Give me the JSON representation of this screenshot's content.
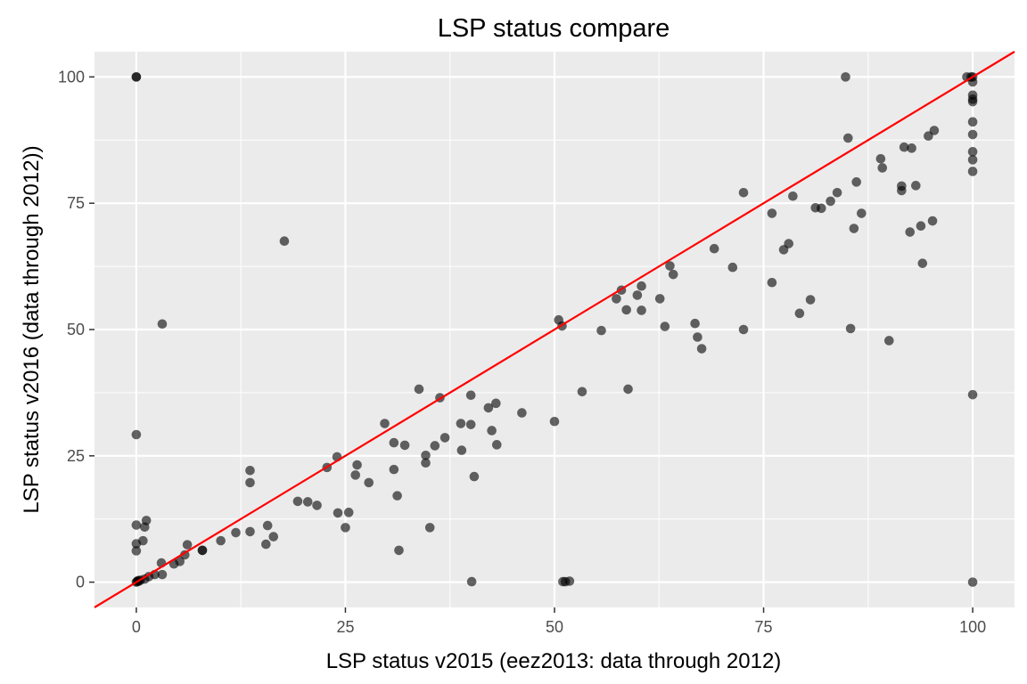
{
  "chart_data": {
    "type": "scatter",
    "title": "LSP status compare",
    "xlabel": "LSP status v2015 (eez2013: data through 2012)",
    "ylabel": "LSP status v2016 (data through 2012))",
    "xlim": [
      -5,
      105
    ],
    "ylim": [
      -5,
      105
    ],
    "x_ticks": [
      0,
      25,
      50,
      75,
      100
    ],
    "y_ticks": [
      0,
      25,
      50,
      75,
      100
    ],
    "grid": true,
    "legend": "none",
    "colors": {
      "panel_background": "#ebebeb",
      "grid": "#ffffff",
      "points": "#000000",
      "reference_line": "#ff0000"
    },
    "point_opacity": 0.6,
    "reference_line": {
      "type": "identity",
      "slope": 1,
      "intercept": 0
    },
    "points": [
      [
        0,
        100
      ],
      [
        0,
        100
      ],
      [
        0,
        29.2
      ],
      [
        0,
        11.3
      ],
      [
        0,
        7.6
      ],
      [
        0,
        6.2
      ],
      [
        0.3,
        0.2
      ],
      [
        0.1,
        0.1
      ],
      [
        0,
        0
      ],
      [
        0.2,
        0.3
      ],
      [
        0.5,
        0.4
      ],
      [
        0.8,
        8.2
      ],
      [
        1,
        10.9
      ],
      [
        1.2,
        12.2
      ],
      [
        1,
        0.6
      ],
      [
        1.5,
        1.1
      ],
      [
        2.2,
        1.5
      ],
      [
        3.1,
        51.1
      ],
      [
        3,
        3.8
      ],
      [
        3.1,
        1.5
      ],
      [
        4.5,
        3.6
      ],
      [
        5.2,
        4.1
      ],
      [
        5.8,
        5.4
      ],
      [
        6.1,
        7.4
      ],
      [
        7.9,
        6.3
      ],
      [
        7.9,
        6.3
      ],
      [
        10.1,
        8.2
      ],
      [
        11.9,
        9.8
      ],
      [
        13.6,
        22.1
      ],
      [
        13.6,
        19.7
      ],
      [
        13.6,
        10
      ],
      [
        15.5,
        7.5
      ],
      [
        15.7,
        11.2
      ],
      [
        16.4,
        9
      ],
      [
        17.7,
        67.5
      ],
      [
        19.3,
        16
      ],
      [
        20.5,
        15.9
      ],
      [
        21.6,
        15.2
      ],
      [
        22.8,
        22.7
      ],
      [
        24,
        24.8
      ],
      [
        24.1,
        13.7
      ],
      [
        25,
        10.8
      ],
      [
        25.4,
        13.8
      ],
      [
        26.2,
        21.2
      ],
      [
        26.4,
        23.2
      ],
      [
        27.8,
        19.7
      ],
      [
        29.7,
        31.4
      ],
      [
        30.8,
        22.3
      ],
      [
        30.8,
        27.6
      ],
      [
        31.2,
        17.1
      ],
      [
        31.4,
        6.3
      ],
      [
        32.1,
        27.1
      ],
      [
        33.8,
        38.2
      ],
      [
        34.6,
        23.6
      ],
      [
        34.6,
        25.1
      ],
      [
        35.1,
        10.8
      ],
      [
        35.7,
        27
      ],
      [
        36.3,
        36.5
      ],
      [
        36.9,
        28.6
      ],
      [
        38.8,
        31.4
      ],
      [
        38.9,
        26.1
      ],
      [
        40,
        31.2
      ],
      [
        40,
        37
      ],
      [
        40.1,
        0.1
      ],
      [
        40.4,
        20.9
      ],
      [
        42.1,
        34.5
      ],
      [
        42.5,
        30
      ],
      [
        43,
        35.4
      ],
      [
        43.1,
        27.2
      ],
      [
        46.1,
        33.5
      ],
      [
        50,
        31.8
      ],
      [
        50.5,
        51.9
      ],
      [
        50.9,
        50.7
      ],
      [
        51,
        0.1
      ],
      [
        51.3,
        0.1
      ],
      [
        51.8,
        0.2
      ],
      [
        53.3,
        37.7
      ],
      [
        55.6,
        49.8
      ],
      [
        57.4,
        56.1
      ],
      [
        58,
        57.8
      ],
      [
        58.6,
        53.9
      ],
      [
        58.8,
        38.2
      ],
      [
        59.9,
        56.8
      ],
      [
        60.4,
        58.6
      ],
      [
        60.4,
        53.8
      ],
      [
        62.6,
        56.1
      ],
      [
        63.2,
        50.6
      ],
      [
        63.8,
        62.6
      ],
      [
        64.2,
        60.9
      ],
      [
        66.8,
        51.2
      ],
      [
        67.1,
        48.5
      ],
      [
        67.6,
        46.2
      ],
      [
        69.1,
        66
      ],
      [
        71.3,
        62.3
      ],
      [
        72.6,
        77.1
      ],
      [
        72.6,
        50
      ],
      [
        76,
        59.3
      ],
      [
        76,
        73
      ],
      [
        77.4,
        65.8
      ],
      [
        78,
        67
      ],
      [
        78.5,
        76.4
      ],
      [
        79.3,
        53.2
      ],
      [
        80.6,
        55.9
      ],
      [
        81.2,
        74.1
      ],
      [
        81.9,
        74
      ],
      [
        83,
        75.4
      ],
      [
        83.8,
        77.1
      ],
      [
        84.8,
        100
      ],
      [
        85.1,
        87.9
      ],
      [
        85.4,
        50.2
      ],
      [
        85.8,
        70
      ],
      [
        86.1,
        79.2
      ],
      [
        86.7,
        73
      ],
      [
        89,
        83.8
      ],
      [
        89.2,
        82
      ],
      [
        90,
        47.8
      ],
      [
        91.5,
        77.5
      ],
      [
        91.5,
        78.4
      ],
      [
        91.8,
        86.1
      ],
      [
        92.5,
        69.3
      ],
      [
        92.7,
        85.9
      ],
      [
        93.2,
        78.5
      ],
      [
        93.8,
        70.5
      ],
      [
        94,
        63.1
      ],
      [
        94.7,
        88.3
      ],
      [
        95.2,
        71.5
      ],
      [
        95.4,
        89.4
      ],
      [
        99.3,
        100
      ],
      [
        99.8,
        100
      ],
      [
        100,
        100
      ],
      [
        100,
        99
      ],
      [
        100,
        96.4
      ],
      [
        100,
        95.6
      ],
      [
        100,
        95.1
      ],
      [
        100,
        91.1
      ],
      [
        100,
        88.6
      ],
      [
        100,
        85.2
      ],
      [
        100,
        83.6
      ],
      [
        100,
        81.3
      ],
      [
        100,
        37.1
      ],
      [
        100,
        0
      ]
    ]
  }
}
